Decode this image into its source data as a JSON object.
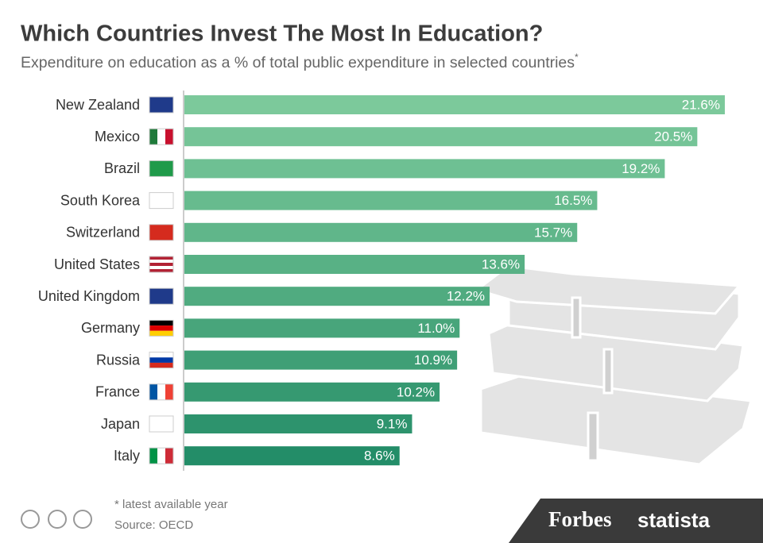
{
  "chart_data": {
    "type": "bar",
    "orientation": "horizontal",
    "title": "Which Countries Invest The Most In Education?",
    "subtitle": "Expenditure on education as a % of total public expenditure in selected countries",
    "subtitle_mark": "*",
    "categories": [
      "New Zealand",
      "Mexico",
      "Brazil",
      "South Korea",
      "Switzerland",
      "United States",
      "United Kingdom",
      "Germany",
      "Russia",
      "France",
      "Japan",
      "Italy"
    ],
    "values": [
      21.6,
      20.5,
      19.2,
      16.5,
      15.7,
      13.6,
      12.2,
      11.0,
      10.9,
      10.2,
      9.1,
      8.6
    ],
    "value_labels": [
      "21.6%",
      "20.5%",
      "19.2%",
      "16.5%",
      "15.7%",
      "13.6%",
      "12.2%",
      "11.0%",
      "10.9%",
      "10.2%",
      "9.1%",
      "8.6%"
    ],
    "colors": [
      "#7cc99b",
      "#75c497",
      "#6ec093",
      "#67bb8e",
      "#60b68a",
      "#58b185",
      "#50ab80",
      "#48a57b",
      "#3f9f76",
      "#369971",
      "#2d936d",
      "#238d68"
    ],
    "footnote": "* latest available year",
    "source": "Source: OECD",
    "logos": [
      "Forbes",
      "statista"
    ]
  }
}
